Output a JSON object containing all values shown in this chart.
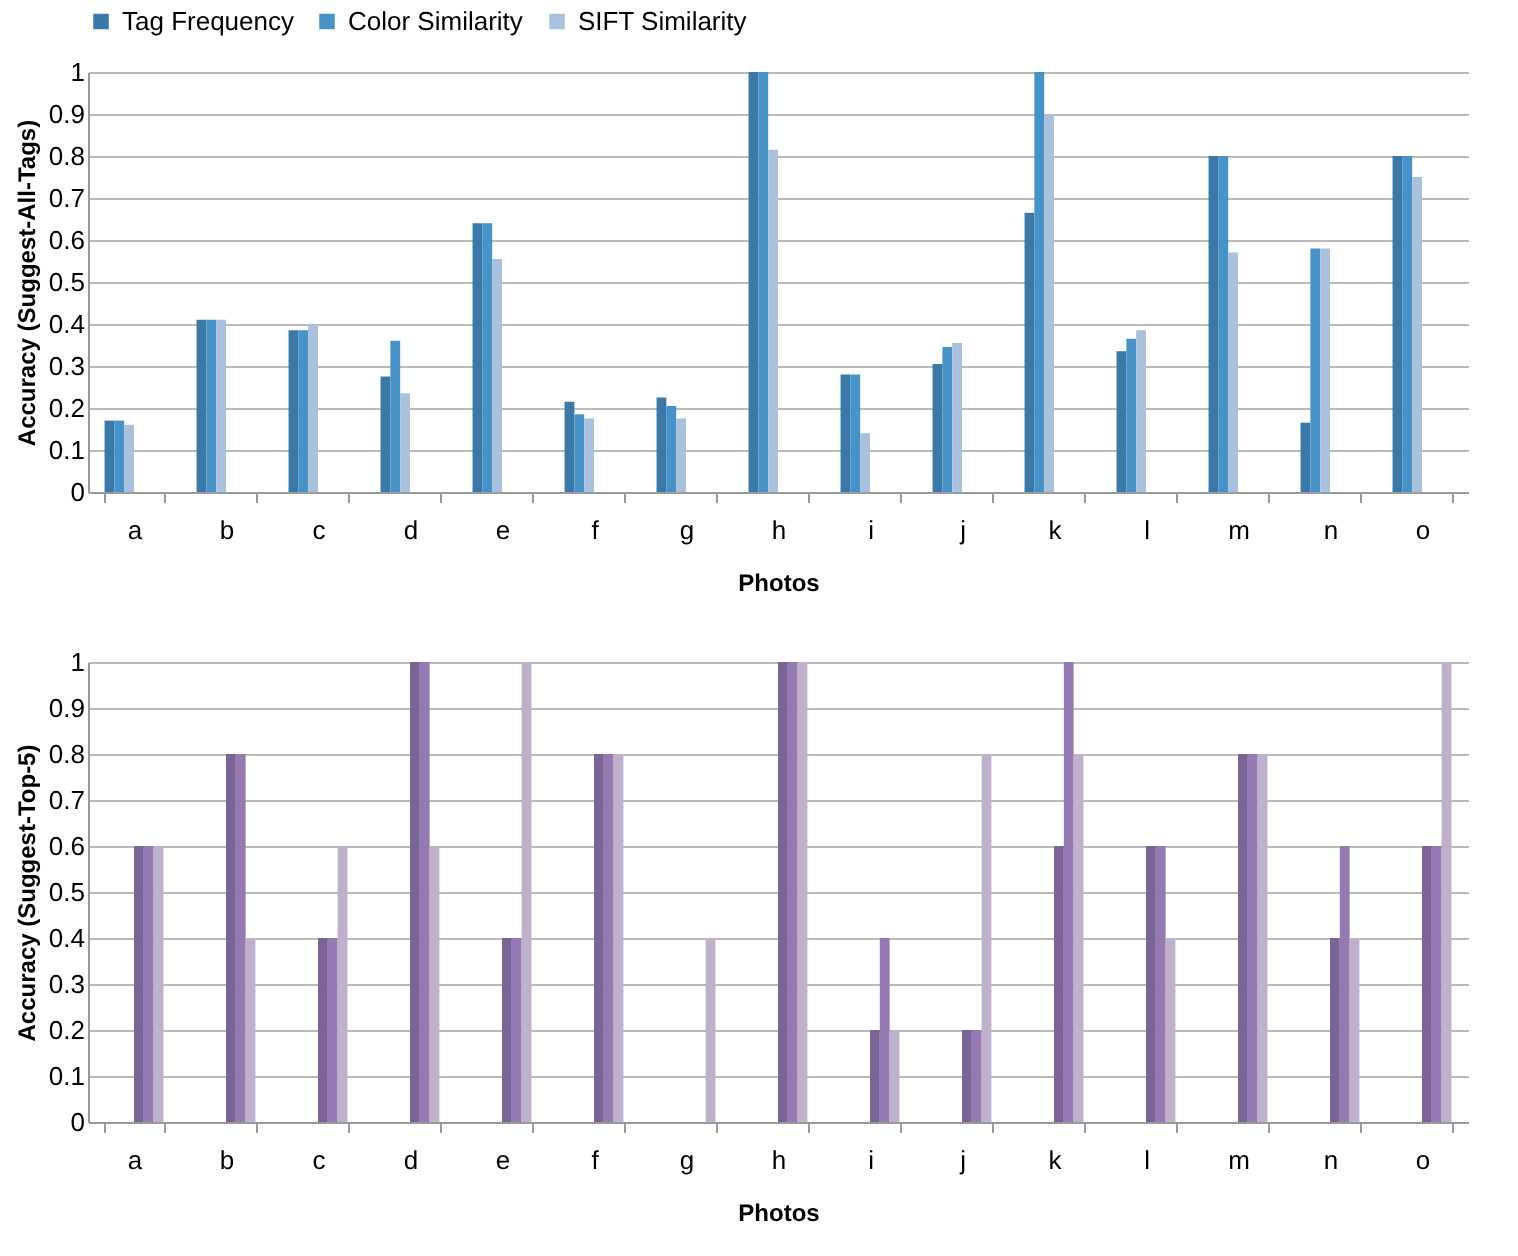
{
  "chart_data": [
    {
      "type": "bar",
      "xlabel": "Photos",
      "ylabel": "Accuracy (Suggest-All-Tags)",
      "categories": [
        "a",
        "b",
        "c",
        "d",
        "e",
        "f",
        "g",
        "h",
        "i",
        "j",
        "k",
        "l",
        "m",
        "n",
        "o"
      ],
      "series": [
        {
          "name": "Tag Frequency",
          "color": "#3a78a8",
          "values": [
            0.17,
            0.41,
            0.385,
            0.275,
            0.64,
            0.215,
            0.225,
            1,
            0.28,
            0.305,
            0.665,
            0.335,
            0.8,
            0.165,
            0.8
          ]
        },
        {
          "name": "Color Similarity",
          "color": "#4593c8",
          "values": [
            0.17,
            0.41,
            0.385,
            0.36,
            0.64,
            0.185,
            0.205,
            1,
            0.28,
            0.345,
            1,
            0.365,
            0.8,
            0.58,
            0.8
          ]
        },
        {
          "name": "SIFT Similarity",
          "color": "#a9c1dc",
          "values": [
            0.16,
            0.41,
            0.4,
            0.235,
            0.555,
            0.175,
            0.175,
            0.815,
            0.14,
            0.355,
            0.895,
            0.385,
            0.57,
            0.58,
            0.75
          ]
        }
      ],
      "ylim": [
        0,
        1
      ],
      "yticks": [
        0,
        0.1,
        0.2,
        0.3,
        0.4,
        0.5,
        0.6,
        0.7,
        0.8,
        0.9,
        1
      ],
      "grid": "y",
      "legend": "top"
    },
    {
      "type": "bar",
      "xlabel": "Photos",
      "ylabel": "Accuracy (Suggest-Top-5)",
      "categories": [
        "a",
        "b",
        "c",
        "d",
        "e",
        "f",
        "g",
        "h",
        "i",
        "j",
        "k",
        "l",
        "m",
        "n",
        "o"
      ],
      "series": [
        {
          "color": "#7a6496",
          "values": [
            0.6,
            0.8,
            0.4,
            1,
            0.4,
            0.8,
            0,
            1,
            0.2,
            0.2,
            0.6,
            0.6,
            0.8,
            0.4,
            0.6
          ]
        },
        {
          "color": "#9479b3",
          "values": [
            0.6,
            0.8,
            0.4,
            1,
            0.4,
            0.8,
            0,
            1,
            0.4,
            0.2,
            1,
            0.6,
            0.8,
            0.6,
            0.6
          ]
        },
        {
          "color": "#bfb0cc",
          "values": [
            0.6,
            0.4,
            0.6,
            0.6,
            1,
            0.8,
            0.4,
            1,
            0.2,
            0.8,
            0.8,
            0.4,
            0.8,
            0.4,
            1
          ]
        }
      ],
      "ylim": [
        0,
        1
      ],
      "yticks": [
        0,
        0.1,
        0.2,
        0.3,
        0.4,
        0.5,
        0.6,
        0.7,
        0.8,
        0.9,
        1
      ],
      "grid": "y"
    }
  ]
}
